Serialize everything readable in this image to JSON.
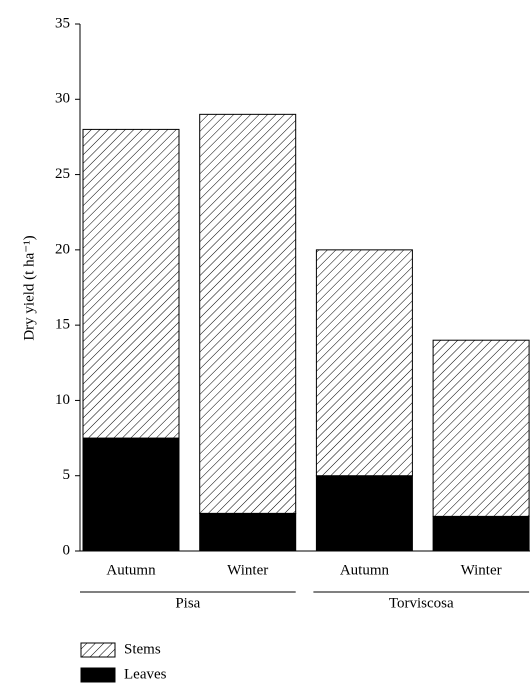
{
  "chart_data": {
    "type": "stacked-bar",
    "y_label": "Dry yield (t ha⁻¹)",
    "categories": [
      "Autumn",
      "Winter",
      "Autumn",
      "Winter"
    ],
    "groups": [
      {
        "name": "Pisa",
        "count": 2
      },
      {
        "name": "Torviscosa",
        "count": 2
      }
    ],
    "series": [
      {
        "name": "Leaves",
        "color": "#000000",
        "values": [
          7.5,
          2.5,
          5,
          2.3
        ]
      },
      {
        "name": "Stems",
        "color": "#000000",
        "pattern": "hatch",
        "values": [
          20.5,
          26.5,
          15,
          11.7
        ]
      }
    ],
    "ylim": [
      0,
      35
    ],
    "yticks": [
      0,
      5,
      10,
      15,
      20,
      25,
      30,
      35
    ],
    "grid": false
  }
}
